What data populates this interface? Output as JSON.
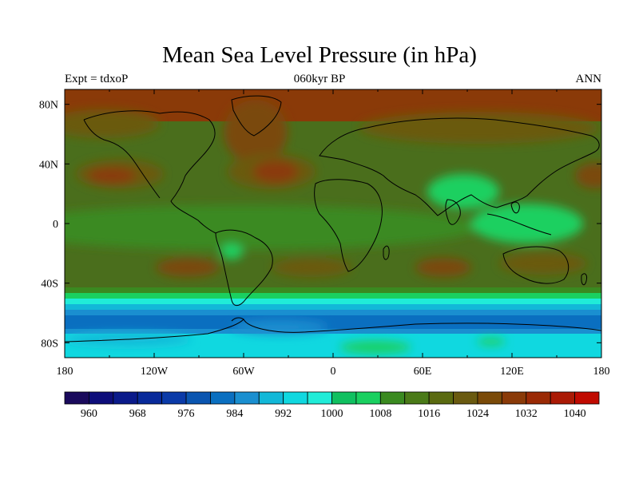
{
  "title": "Mean Sea Level Pressure (in hPa)",
  "subtitle_left": "Expt = tdxoP",
  "subtitle_center": "060kyr BP",
  "subtitle_right": "ANN",
  "x_ticks": [
    "180",
    "120W",
    "60W",
    "0",
    "60E",
    "120E",
    "180"
  ],
  "y_ticks": [
    "80N",
    "40N",
    "0",
    "40S",
    "80S"
  ],
  "colorbar": {
    "labels": [
      "960",
      "968",
      "976",
      "984",
      "992",
      "1000",
      "1008",
      "1016",
      "1024",
      "1032",
      "1040"
    ],
    "colors": [
      "#1a0a5c",
      "#0d0d7a",
      "#0a1a8a",
      "#082a9a",
      "#0a3aa8",
      "#0a55b0",
      "#0a6fc0",
      "#1a8fd0",
      "#12b8d8",
      "#10d8e0",
      "#20ecd8",
      "#10c060",
      "#1ad060",
      "#3a8a20",
      "#4a7a18",
      "#5a6a10",
      "#6a5a10",
      "#7a4a08",
      "#8a3a08",
      "#9a2a05",
      "#aa1a05",
      "#c00a00"
    ]
  },
  "legend_units": "hPa"
}
